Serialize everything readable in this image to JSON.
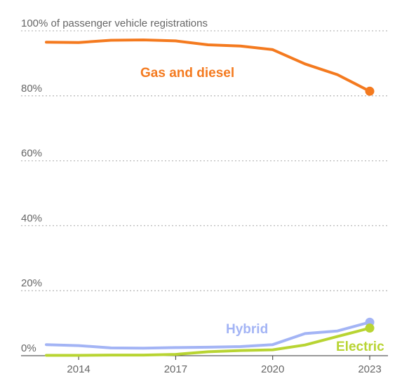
{
  "chart_data": {
    "type": "line",
    "x": [
      2013,
      2014,
      2015,
      2016,
      2017,
      2018,
      2019,
      2020,
      2021,
      2022,
      2023
    ],
    "series": [
      {
        "name": "Gas and diesel",
        "color": "#f47a1f",
        "values": [
          96.5,
          96.4,
          97.1,
          97.2,
          96.9,
          95.7,
          95.3,
          94.2,
          89.8,
          86.5,
          81.4
        ]
      },
      {
        "name": "Hybrid",
        "color": "#a3b4f5",
        "values": [
          3.4,
          3.1,
          2.4,
          2.3,
          2.5,
          2.6,
          2.8,
          3.4,
          6.8,
          7.6,
          10.3
        ]
      },
      {
        "name": "Electric",
        "color": "#b8d432",
        "values": [
          0.1,
          0.1,
          0.2,
          0.2,
          0.4,
          1.2,
          1.6,
          1.8,
          3.3,
          5.9,
          8.5
        ]
      }
    ],
    "ylim": [
      0,
      100
    ],
    "yticks": [
      0,
      20,
      40,
      60,
      80,
      100
    ],
    "ytick_labels": [
      "0%",
      "20%",
      "40%",
      "60%",
      "80%",
      "100% of passenger vehicle registrations"
    ],
    "xticks": [
      2014,
      2017,
      2020,
      2023
    ],
    "xtick_labels": [
      "2014",
      "2017",
      "2020",
      "2023"
    ],
    "grid": true,
    "grid_color": "#bbbbbb",
    "legend": "direct labels"
  }
}
